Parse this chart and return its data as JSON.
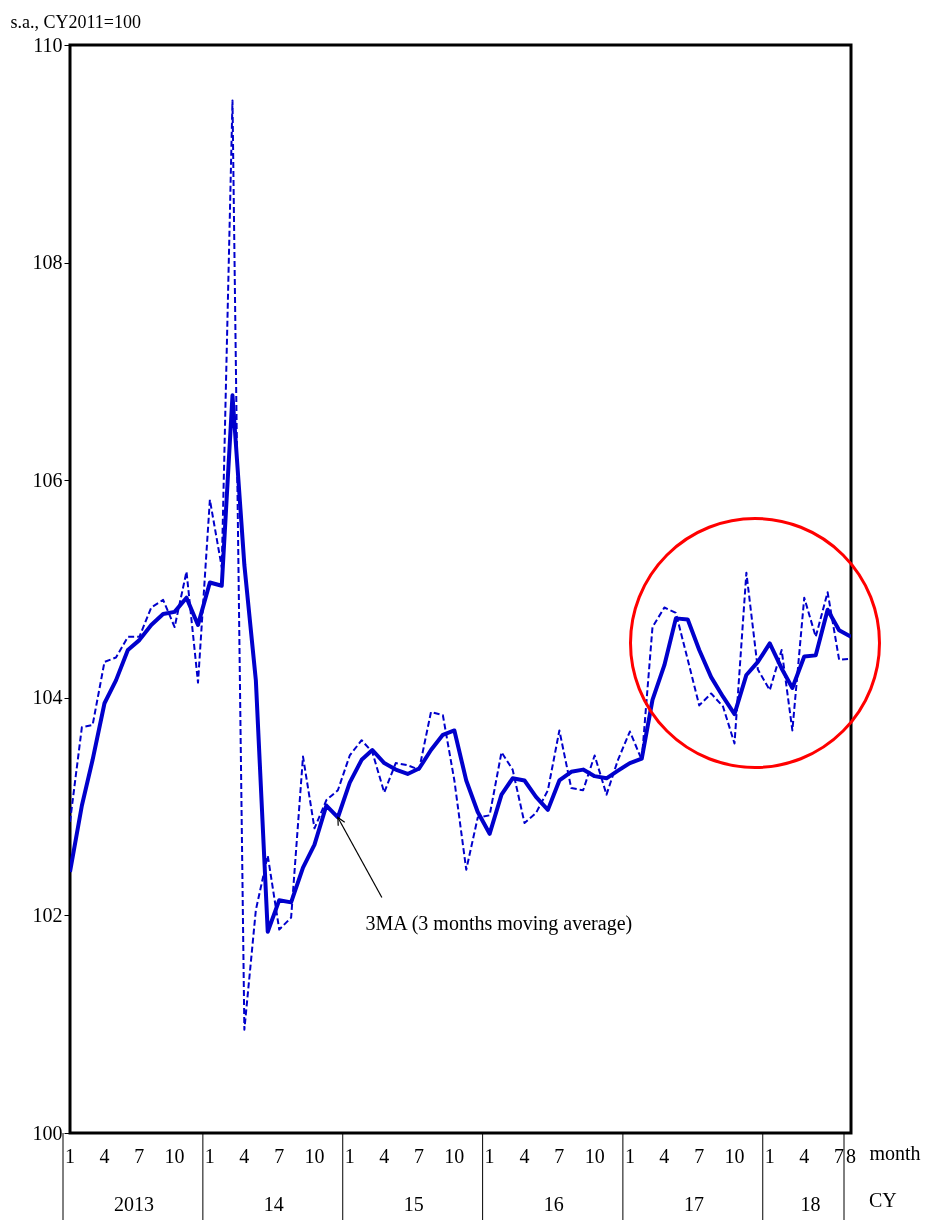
{
  "chart_data": {
    "type": "line",
    "ylabel": "s.a., CY2011=100",
    "xlabel": "month",
    "x": [
      "2013-01",
      "2013-02",
      "2013-03",
      "2013-04",
      "2013-05",
      "2013-06",
      "2013-07",
      "2013-08",
      "2013-09",
      "2013-10",
      "2013-11",
      "2013-12",
      "2014-01",
      "2014-02",
      "2014-03",
      "2014-04",
      "2014-05",
      "2014-06",
      "2014-07",
      "2014-08",
      "2014-09",
      "2014-10",
      "2014-11",
      "2014-12",
      "2015-01",
      "2015-02",
      "2015-03",
      "2015-04",
      "2015-05",
      "2015-06",
      "2015-07",
      "2015-08",
      "2015-09",
      "2015-10",
      "2015-11",
      "2015-12",
      "2016-01",
      "2016-02",
      "2016-03",
      "2016-04",
      "2016-05",
      "2016-06",
      "2016-07",
      "2016-08",
      "2016-09",
      "2016-10",
      "2016-11",
      "2016-12",
      "2017-01",
      "2017-02",
      "2017-03",
      "2017-04",
      "2017-05",
      "2017-06",
      "2017-07",
      "2017-08",
      "2017-09",
      "2017-10",
      "2017-11",
      "2017-12",
      "2018-01",
      "2018-02",
      "2018-03",
      "2018-04",
      "2018-05",
      "2018-06",
      "2018-07",
      "2018-08"
    ],
    "series": [
      {
        "color": "#0000cc",
        "line_style": "dashed",
        "values": [
          102.86,
          103.73,
          103.75,
          104.33,
          104.37,
          104.56,
          104.56,
          104.83,
          104.9,
          104.65,
          105.16,
          104.14,
          105.82,
          105.2,
          109.49,
          100.95,
          102.05,
          102.55,
          101.87,
          101.98,
          103.46,
          102.8,
          103.06,
          103.15,
          103.47,
          103.61,
          103.5,
          103.13,
          103.4,
          103.38,
          103.34,
          103.87,
          103.84,
          103.24,
          102.42,
          102.9,
          102.92,
          103.5,
          103.34,
          102.85,
          102.94,
          103.15,
          103.7,
          103.17,
          103.15,
          103.47,
          103.11,
          103.43,
          103.69,
          103.43,
          104.65,
          104.83,
          104.78,
          104.35,
          103.93,
          104.04,
          103.92,
          103.58,
          105.15,
          104.26,
          104.07,
          104.44,
          103.7,
          104.92,
          104.56,
          104.97,
          104.35,
          104.36
        ]
      },
      {
        "color": "#0000cc",
        "line_style": "solid",
        "values": [
          102.4,
          103.01,
          103.43,
          103.95,
          104.16,
          104.44,
          104.53,
          104.67,
          104.77,
          104.79,
          104.92,
          104.67,
          105.06,
          105.03,
          106.78,
          105.22,
          104.16,
          101.85,
          102.14,
          102.12,
          102.44,
          102.65,
          103.01,
          102.9,
          103.22,
          103.43,
          103.52,
          103.4,
          103.34,
          103.3,
          103.35,
          103.52,
          103.66,
          103.7,
          103.24,
          102.95,
          102.75,
          103.11,
          103.26,
          103.24,
          103.09,
          102.97,
          103.24,
          103.32,
          103.34,
          103.28,
          103.26,
          103.33,
          103.4,
          103.44,
          103.98,
          104.3,
          104.73,
          104.72,
          104.44,
          104.19,
          104.01,
          103.85,
          104.21,
          104.33,
          104.5,
          104.27,
          104.09,
          104.38,
          104.39,
          104.81,
          104.62,
          104.56
        ]
      }
    ],
    "xlim": [
      "2013-01",
      "2018-08"
    ],
    "xticks": [
      {
        "value": "2013-01",
        "label": "1"
      },
      {
        "value": "2013-04",
        "label": "4"
      },
      {
        "value": "2013-07",
        "label": "7"
      },
      {
        "value": "2013-10",
        "label": "10"
      },
      {
        "value": "2014-01",
        "label": "1"
      },
      {
        "value": "2014-04",
        "label": "4"
      },
      {
        "value": "2014-07",
        "label": "7"
      },
      {
        "value": "2014-10",
        "label": "10"
      },
      {
        "value": "2015-01",
        "label": "1"
      },
      {
        "value": "2015-04",
        "label": "4"
      },
      {
        "value": "2015-07",
        "label": "7"
      },
      {
        "value": "2015-10",
        "label": "10"
      },
      {
        "value": "2016-01",
        "label": "1"
      },
      {
        "value": "2016-04",
        "label": "4"
      },
      {
        "value": "2016-07",
        "label": "7"
      },
      {
        "value": "2016-10",
        "label": "10"
      },
      {
        "value": "2017-01",
        "label": "1"
      },
      {
        "value": "2017-04",
        "label": "4"
      },
      {
        "value": "2017-07",
        "label": "7"
      },
      {
        "value": "2017-10",
        "label": "10"
      },
      {
        "value": "2018-01",
        "label": "1"
      },
      {
        "value": "2018-04",
        "label": "4"
      },
      {
        "value": "2018-07",
        "label": "7"
      },
      {
        "value": "2018-08",
        "label": "8"
      }
    ],
    "ylim": [
      100,
      110
    ],
    "yticks": [
      100,
      102,
      104,
      106,
      108,
      110
    ],
    "annotations": [
      {
        "text": "3MA (3 months moving average)",
        "x": "2014-12",
        "y": 102.9
      },
      "2013",
      "14",
      "15",
      "16",
      "17",
      "18",
      "CY"
    ]
  }
}
